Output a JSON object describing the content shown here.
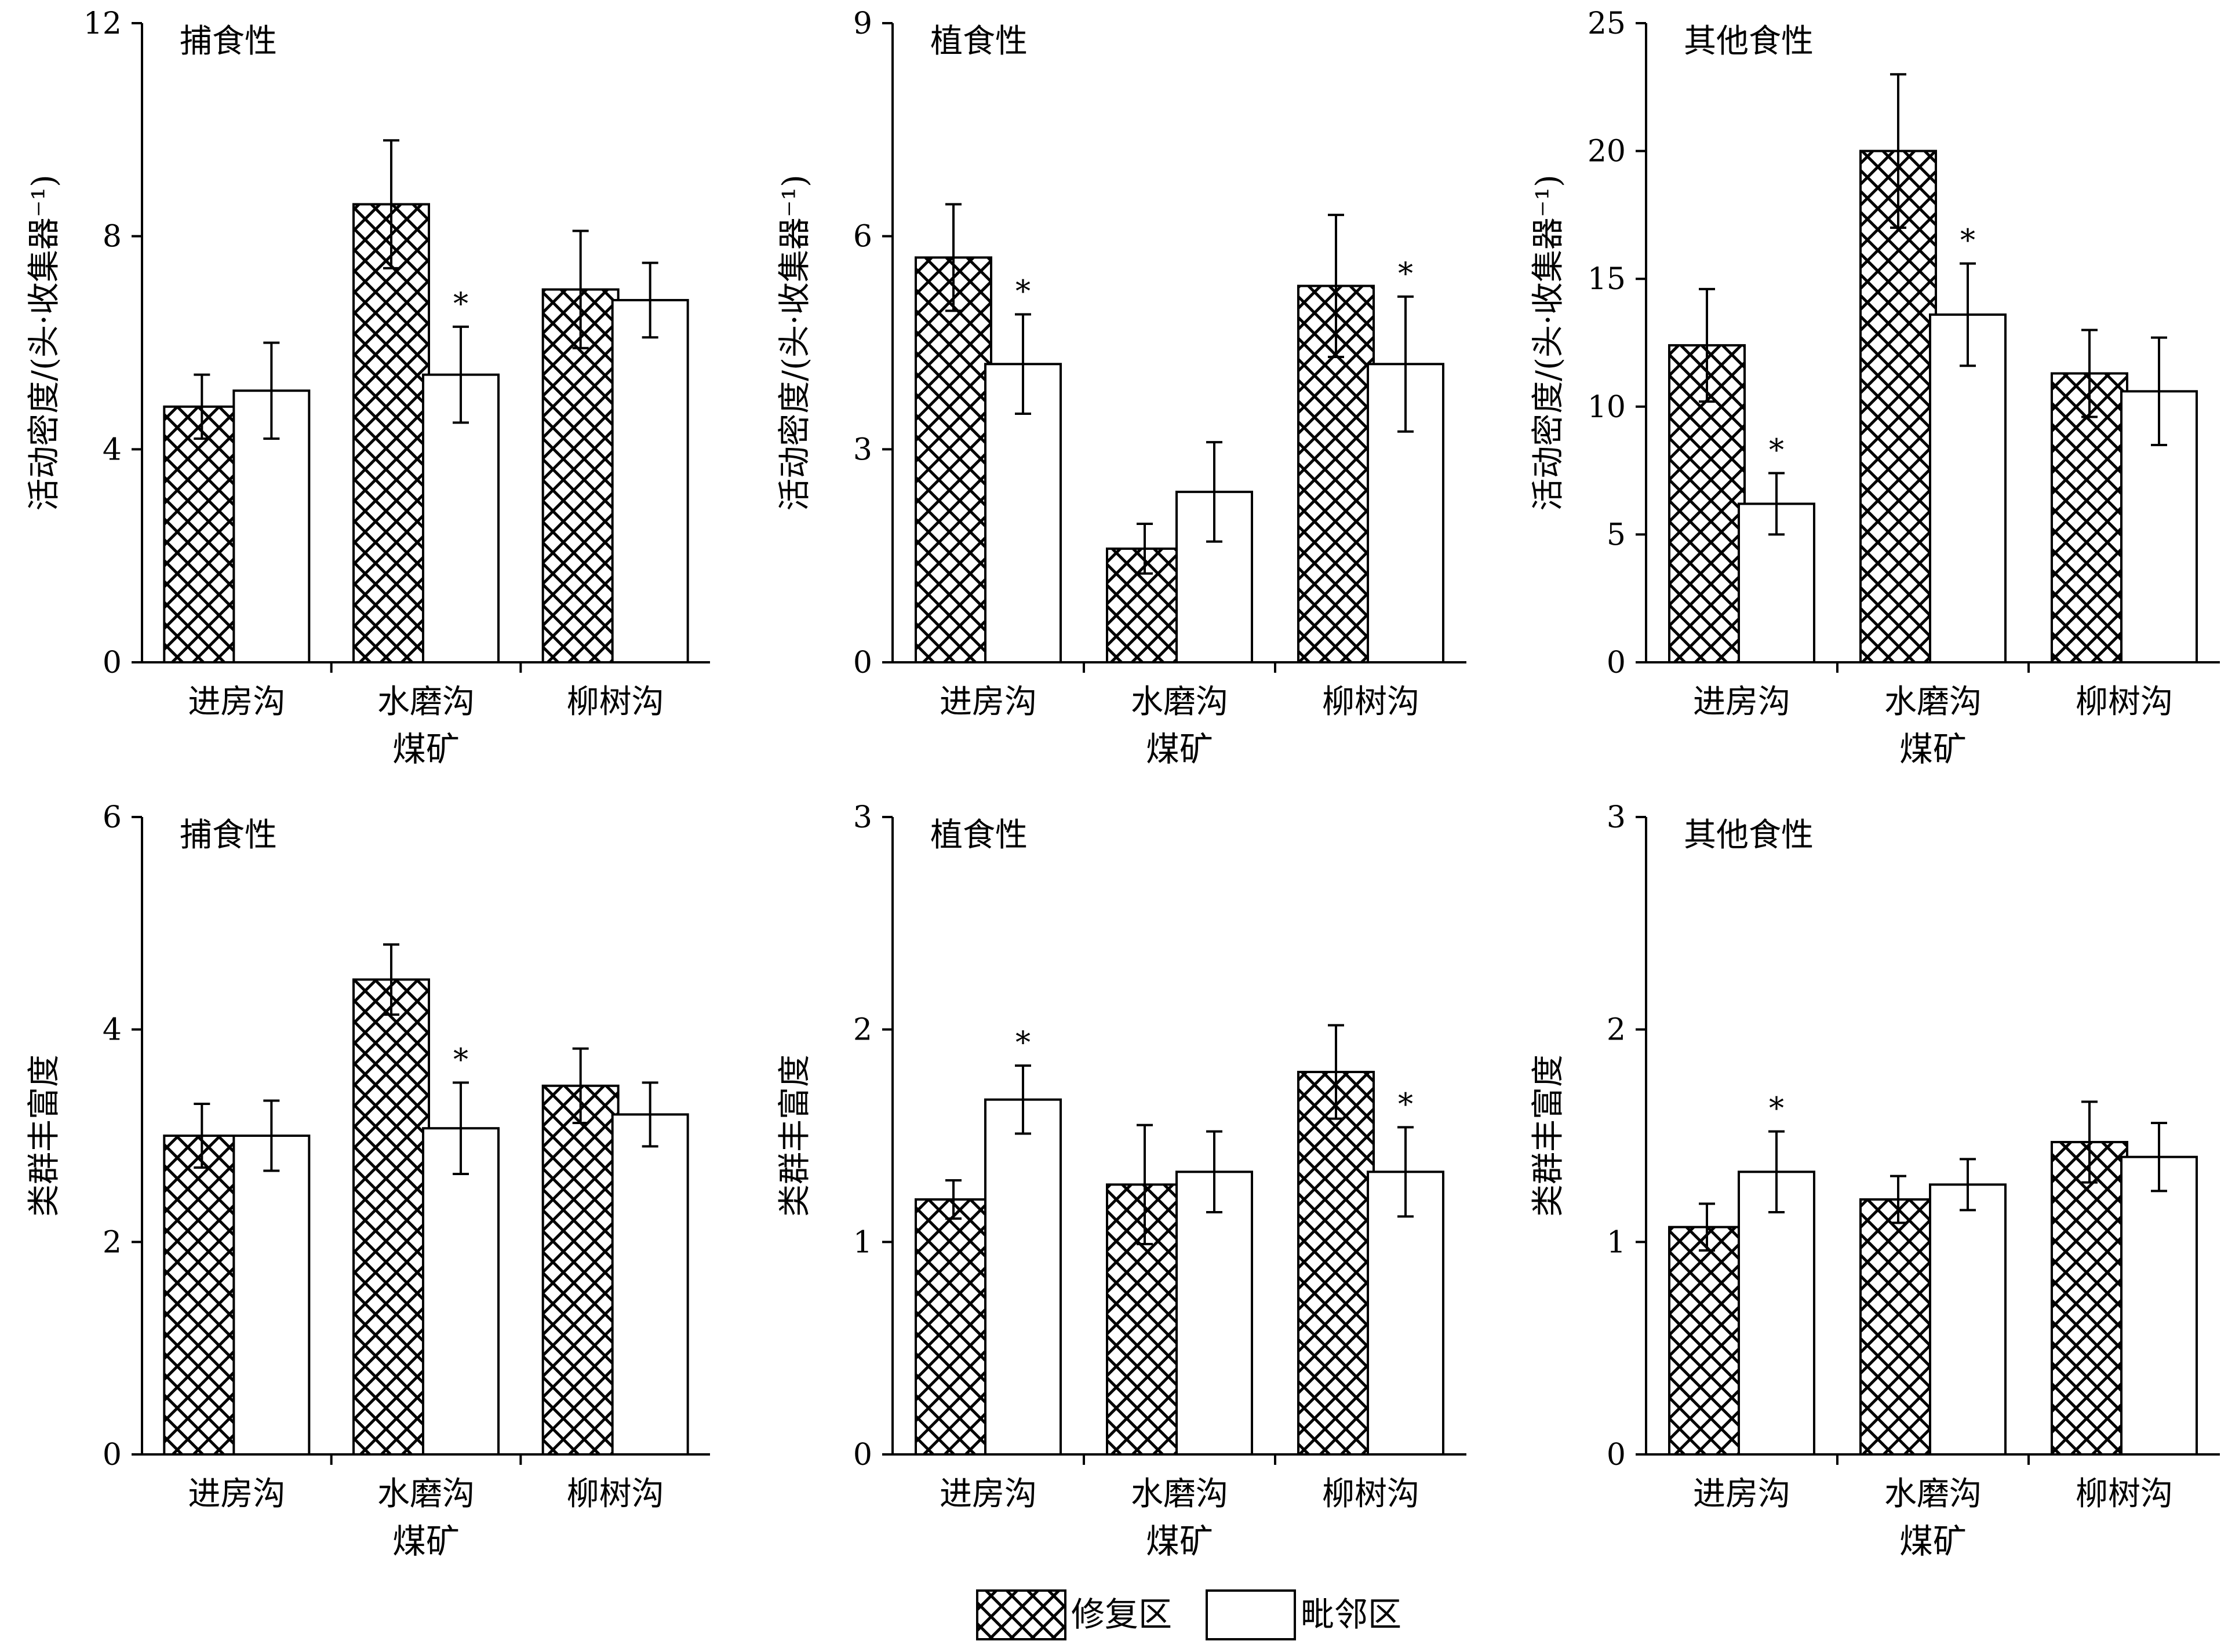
{
  "legend": {
    "items": [
      {
        "label": "修复区",
        "pattern": "crosshatch"
      },
      {
        "label": "毗邻区",
        "pattern": "white"
      }
    ]
  },
  "chart_data": [
    {
      "type": "bar",
      "title": "捕食性",
      "ylabel": "活动密度/(头·收集器⁻¹)",
      "xlabel": "煤矿",
      "categories": [
        "进房沟",
        "水磨沟",
        "柳树沟"
      ],
      "ylim": [
        0,
        12
      ],
      "yticks": [
        0,
        4,
        8,
        12
      ],
      "series": [
        {
          "name": "修复区",
          "values": [
            4.8,
            8.6,
            7.0
          ],
          "errors": [
            0.6,
            1.2,
            1.1
          ]
        },
        {
          "name": "毗邻区",
          "values": [
            5.1,
            5.4,
            6.8
          ],
          "errors": [
            0.9,
            0.9,
            0.7
          ],
          "stars": [
            false,
            true,
            false
          ]
        }
      ],
      "star_label": "*"
    },
    {
      "type": "bar",
      "title": "植食性",
      "ylabel": "活动密度/(头·收集器⁻¹)",
      "xlabel": "煤矿",
      "categories": [
        "进房沟",
        "水磨沟",
        "柳树沟"
      ],
      "ylim": [
        0,
        9
      ],
      "yticks": [
        0,
        3,
        6,
        9
      ],
      "series": [
        {
          "name": "修复区",
          "values": [
            5.7,
            1.6,
            5.3
          ],
          "errors": [
            0.75,
            0.35,
            1.0
          ]
        },
        {
          "name": "毗邻区",
          "values": [
            4.2,
            2.4,
            4.2
          ],
          "errors": [
            0.7,
            0.7,
            0.95
          ],
          "stars": [
            true,
            false,
            true
          ]
        }
      ],
      "star_label": "*"
    },
    {
      "type": "bar",
      "title": "其他食性",
      "ylabel": "活动密度/(头·收集器⁻¹)",
      "xlabel": "煤矿",
      "categories": [
        "进房沟",
        "水磨沟",
        "柳树沟"
      ],
      "ylim": [
        0,
        25
      ],
      "yticks": [
        0,
        5,
        10,
        15,
        20,
        25
      ],
      "series": [
        {
          "name": "修复区",
          "values": [
            12.4,
            20.0,
            11.3
          ],
          "errors": [
            2.2,
            3.0,
            1.7
          ]
        },
        {
          "name": "毗邻区",
          "values": [
            6.2,
            13.6,
            10.6
          ],
          "errors": [
            1.2,
            2.0,
            2.1
          ],
          "stars": [
            true,
            true,
            false
          ]
        }
      ],
      "star_label": "*"
    },
    {
      "type": "bar",
      "title": "捕食性",
      "ylabel": "类群丰富度",
      "xlabel": "煤矿",
      "categories": [
        "进房沟",
        "水磨沟",
        "柳树沟"
      ],
      "ylim": [
        0,
        6
      ],
      "yticks": [
        0,
        2,
        4,
        6
      ],
      "series": [
        {
          "name": "修复区",
          "values": [
            3.0,
            4.47,
            3.47
          ],
          "errors": [
            0.3,
            0.33,
            0.35
          ]
        },
        {
          "name": "毗邻区",
          "values": [
            3.0,
            3.07,
            3.2
          ],
          "errors": [
            0.33,
            0.43,
            0.3
          ],
          "stars": [
            false,
            true,
            false
          ]
        }
      ],
      "star_label": "*"
    },
    {
      "type": "bar",
      "title": "植食性",
      "ylabel": "类群丰富度",
      "xlabel": "煤矿",
      "categories": [
        "进房沟",
        "水磨沟",
        "柳树沟"
      ],
      "ylim": [
        0,
        3
      ],
      "yticks": [
        0,
        1,
        2,
        3
      ],
      "series": [
        {
          "name": "修复区",
          "values": [
            1.2,
            1.27,
            1.8
          ],
          "errors": [
            0.09,
            0.28,
            0.22
          ]
        },
        {
          "name": "毗邻区",
          "values": [
            1.67,
            1.33,
            1.33
          ],
          "errors": [
            0.16,
            0.19,
            0.21
          ],
          "stars": [
            true,
            false,
            true
          ]
        }
      ],
      "star_label": "*"
    },
    {
      "type": "bar",
      "title": "其他食性",
      "ylabel": "类群丰富度",
      "xlabel": "煤矿",
      "categories": [
        "进房沟",
        "水磨沟",
        "柳树沟"
      ],
      "ylim": [
        0,
        3
      ],
      "yticks": [
        0,
        1,
        2,
        3
      ],
      "series": [
        {
          "name": "修复区",
          "values": [
            1.07,
            1.2,
            1.47
          ],
          "errors": [
            0.11,
            0.11,
            0.19
          ]
        },
        {
          "name": "毗邻区",
          "values": [
            1.33,
            1.27,
            1.4
          ],
          "errors": [
            0.19,
            0.12,
            0.16
          ],
          "stars": [
            true,
            false,
            false
          ]
        }
      ],
      "star_label": "*"
    }
  ]
}
